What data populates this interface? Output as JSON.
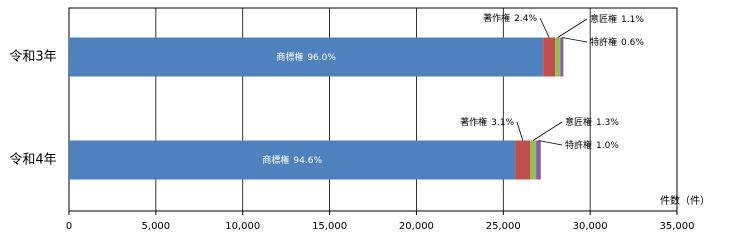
{
  "chart_data": {
    "type": "stacked-barh",
    "categories": [
      "令和3年",
      "令和4年"
    ],
    "series": [
      {
        "name": "商標権",
        "color": "#4f81bd",
        "values": [
          27300,
          25700
        ],
        "percent_labels": [
          "96.0%",
          "94.6%"
        ]
      },
      {
        "name": "著作権",
        "color": "#c0504d",
        "values": [
          680,
          840
        ],
        "percent_labels": [
          "2.4%",
          "3.1%"
        ]
      },
      {
        "name": "意匠権",
        "color": "#9bbb59",
        "values": [
          310,
          350
        ],
        "percent_labels": [
          "1.1%",
          "1.3%"
        ]
      },
      {
        "name": "特許権",
        "color": "#8064a2",
        "values": [
          170,
          270
        ],
        "percent_labels": [
          "0.6%",
          "1.0%"
        ]
      }
    ],
    "x_axis_label": "件数（件）",
    "xlim": [
      0,
      35000
    ],
    "xticks": [
      0,
      {
        "value": 5000,
        "label": "5,000"
      },
      {
        "value": 10000,
        "label": "10,000"
      },
      {
        "value": 15000,
        "label": "15,000"
      },
      {
        "value": 20000,
        "label": "20,000"
      },
      {
        "value": 25000,
        "label": "25,000"
      },
      {
        "value": 30000,
        "label": "30,000"
      },
      {
        "value": 35000,
        "label": "35,000"
      }
    ],
    "grid": true
  }
}
